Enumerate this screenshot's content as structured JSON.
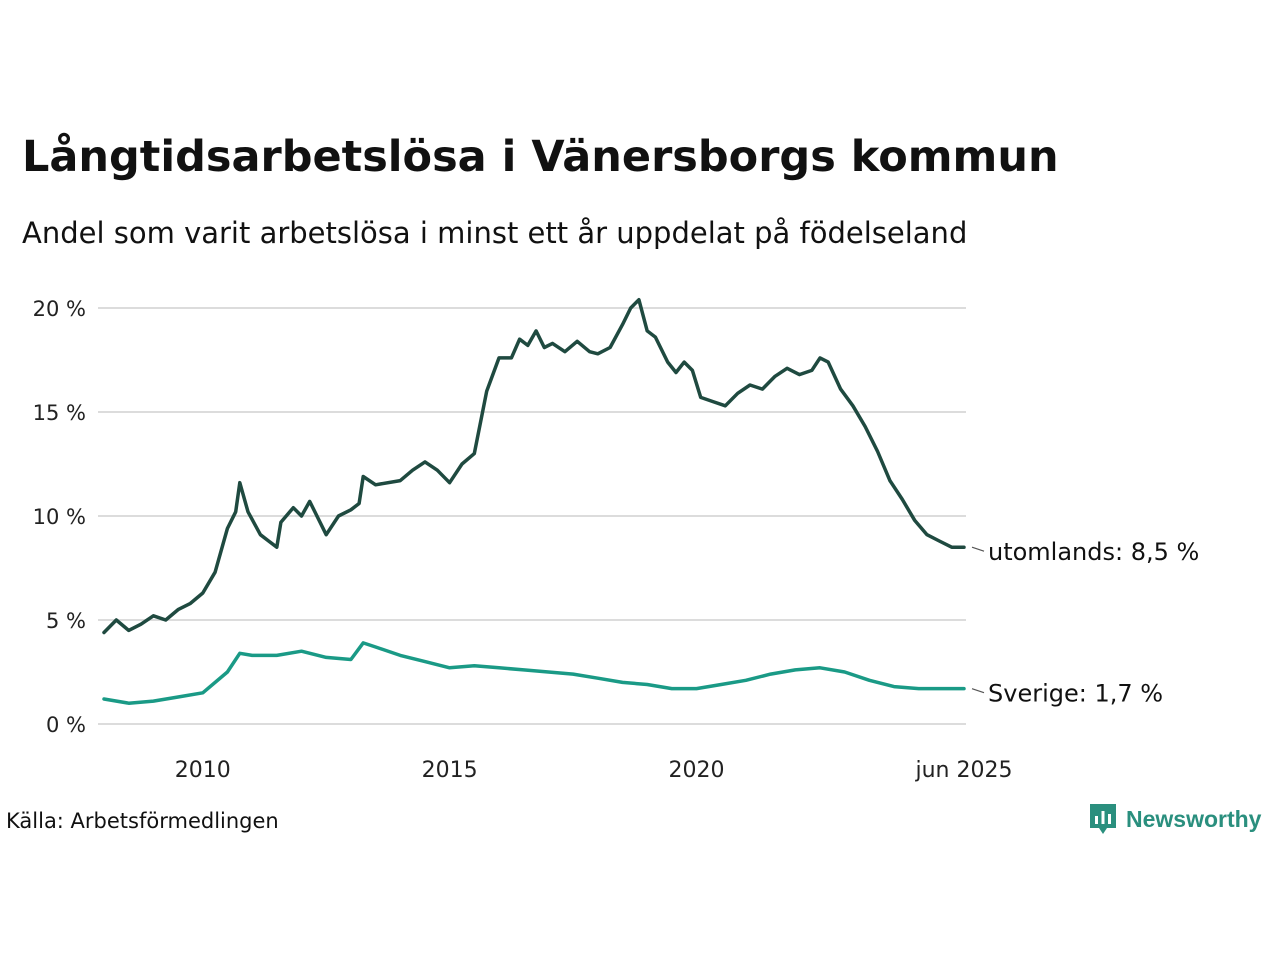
{
  "title": "Långtidsarbetslösa i Vänersborgs kommun",
  "subtitle": "Andel som varit arbetslösa i minst ett år uppdelat på födelseland",
  "source": "Källa: Arbetsförmedlingen",
  "brand": {
    "name": "Newsworthy",
    "color": "#2a8f7e"
  },
  "chart_data": {
    "type": "line",
    "title": "Långtidsarbetslösa i Vänersborgs kommun",
    "subtitle": "Andel som varit arbetslösa i minst ett år uppdelat på födelseland",
    "x_range": [
      "2008-01",
      "2025-06"
    ],
    "ylim": [
      0,
      20
    ],
    "y_ticks": [
      {
        "value": 0,
        "label": "0 %"
      },
      {
        "value": 5,
        "label": "5 %"
      },
      {
        "value": 10,
        "label": "10 %"
      },
      {
        "value": 15,
        "label": "15 %"
      },
      {
        "value": 20,
        "label": "20 %"
      }
    ],
    "x_ticks": [
      {
        "value": "2010-01",
        "label": "2010"
      },
      {
        "value": "2015-01",
        "label": "2015"
      },
      {
        "value": "2020-01",
        "label": "2020"
      },
      {
        "value": "2025-06",
        "label": "jun 2025"
      }
    ],
    "grid": "horizontal",
    "series": [
      {
        "name": "utomlands",
        "end_label": "utomlands: 8,5 %",
        "color": "#1f4a40",
        "points": [
          [
            "2008-01",
            4.4
          ],
          [
            "2008-04",
            5.0
          ],
          [
            "2008-07",
            4.5
          ],
          [
            "2008-10",
            4.8
          ],
          [
            "2009-01",
            5.2
          ],
          [
            "2009-04",
            5.0
          ],
          [
            "2009-07",
            5.5
          ],
          [
            "2009-10",
            5.8
          ],
          [
            "2010-01",
            6.3
          ],
          [
            "2010-04",
            7.3
          ],
          [
            "2010-07",
            9.4
          ],
          [
            "2010-09",
            10.2
          ],
          [
            "2010-10",
            11.6
          ],
          [
            "2010-12",
            10.2
          ],
          [
            "2011-03",
            9.1
          ],
          [
            "2011-05",
            8.8
          ],
          [
            "2011-07",
            8.5
          ],
          [
            "2011-08",
            9.7
          ],
          [
            "2011-11",
            10.4
          ],
          [
            "2012-01",
            10.0
          ],
          [
            "2012-03",
            10.7
          ],
          [
            "2012-05",
            9.9
          ],
          [
            "2012-07",
            9.1
          ],
          [
            "2012-10",
            10.0
          ],
          [
            "2013-01",
            10.3
          ],
          [
            "2013-03",
            10.6
          ],
          [
            "2013-04",
            11.9
          ],
          [
            "2013-07",
            11.5
          ],
          [
            "2014-01",
            11.7
          ],
          [
            "2014-04",
            12.2
          ],
          [
            "2014-07",
            12.6
          ],
          [
            "2014-10",
            12.2
          ],
          [
            "2015-01",
            11.6
          ],
          [
            "2015-04",
            12.5
          ],
          [
            "2015-07",
            13.0
          ],
          [
            "2015-10",
            16.0
          ],
          [
            "2016-01",
            17.6
          ],
          [
            "2016-04",
            17.6
          ],
          [
            "2016-06",
            18.5
          ],
          [
            "2016-08",
            18.2
          ],
          [
            "2016-10",
            18.9
          ],
          [
            "2016-12",
            18.1
          ],
          [
            "2017-02",
            18.3
          ],
          [
            "2017-05",
            17.9
          ],
          [
            "2017-08",
            18.4
          ],
          [
            "2017-11",
            17.9
          ],
          [
            "2018-01",
            17.8
          ],
          [
            "2018-04",
            18.1
          ],
          [
            "2018-07",
            19.2
          ],
          [
            "2018-09",
            20.0
          ],
          [
            "2018-11",
            20.4
          ],
          [
            "2019-01",
            18.9
          ],
          [
            "2019-03",
            18.6
          ],
          [
            "2019-06",
            17.4
          ],
          [
            "2019-08",
            16.9
          ],
          [
            "2019-10",
            17.4
          ],
          [
            "2019-12",
            17.0
          ],
          [
            "2020-02",
            15.7
          ],
          [
            "2020-05",
            15.5
          ],
          [
            "2020-08",
            15.3
          ],
          [
            "2020-11",
            15.9
          ],
          [
            "2021-02",
            16.3
          ],
          [
            "2021-05",
            16.1
          ],
          [
            "2021-08",
            16.7
          ],
          [
            "2021-11",
            17.1
          ],
          [
            "2022-02",
            16.8
          ],
          [
            "2022-05",
            17.0
          ],
          [
            "2022-07",
            17.6
          ],
          [
            "2022-09",
            17.4
          ],
          [
            "2022-12",
            16.1
          ],
          [
            "2023-03",
            15.3
          ],
          [
            "2023-06",
            14.3
          ],
          [
            "2023-09",
            13.1
          ],
          [
            "2023-12",
            11.7
          ],
          [
            "2024-03",
            10.8
          ],
          [
            "2024-06",
            9.8
          ],
          [
            "2024-09",
            9.1
          ],
          [
            "2024-12",
            8.8
          ],
          [
            "2025-03",
            8.5
          ],
          [
            "2025-06",
            8.5
          ]
        ]
      },
      {
        "name": "Sverige",
        "end_label": "Sverige: 1,7 %",
        "color": "#1a9a86",
        "points": [
          [
            "2008-01",
            1.2
          ],
          [
            "2008-07",
            1.0
          ],
          [
            "2009-01",
            1.1
          ],
          [
            "2009-07",
            1.3
          ],
          [
            "2010-01",
            1.5
          ],
          [
            "2010-07",
            2.5
          ],
          [
            "2010-10",
            3.4
          ],
          [
            "2011-01",
            3.3
          ],
          [
            "2011-07",
            3.3
          ],
          [
            "2012-01",
            3.5
          ],
          [
            "2012-07",
            3.2
          ],
          [
            "2013-01",
            3.1
          ],
          [
            "2013-04",
            3.9
          ],
          [
            "2013-07",
            3.7
          ],
          [
            "2014-01",
            3.3
          ],
          [
            "2014-07",
            3.0
          ],
          [
            "2015-01",
            2.7
          ],
          [
            "2015-07",
            2.8
          ],
          [
            "2016-01",
            2.7
          ],
          [
            "2016-07",
            2.6
          ],
          [
            "2017-01",
            2.5
          ],
          [
            "2017-07",
            2.4
          ],
          [
            "2018-01",
            2.2
          ],
          [
            "2018-07",
            2.0
          ],
          [
            "2019-01",
            1.9
          ],
          [
            "2019-07",
            1.7
          ],
          [
            "2020-01",
            1.7
          ],
          [
            "2020-07",
            1.9
          ],
          [
            "2021-01",
            2.1
          ],
          [
            "2021-07",
            2.4
          ],
          [
            "2022-01",
            2.6
          ],
          [
            "2022-07",
            2.7
          ],
          [
            "2023-01",
            2.5
          ],
          [
            "2023-07",
            2.1
          ],
          [
            "2024-01",
            1.8
          ],
          [
            "2024-07",
            1.7
          ],
          [
            "2025-01",
            1.7
          ],
          [
            "2025-06",
            1.7
          ]
        ]
      }
    ]
  }
}
